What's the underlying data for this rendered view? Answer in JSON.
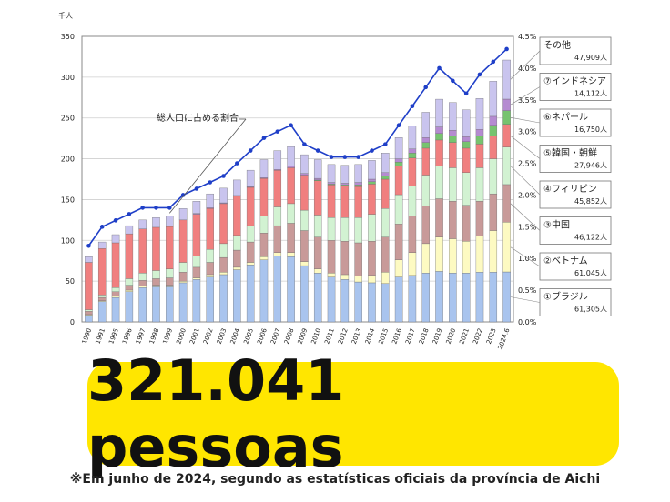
{
  "chart_data": {
    "type": "bar",
    "stacked": true,
    "y_unit_label": "千人",
    "ylim": [
      0,
      350
    ],
    "yticks": [
      0,
      50,
      100,
      150,
      200,
      250,
      300,
      350
    ],
    "y2lim": [
      0,
      4.5
    ],
    "y2ticks": [
      "0.0%",
      "0.5%",
      "1.0%",
      "1.5%",
      "2.0%",
      "2.5%",
      "3.0%",
      "3.5%",
      "4.0%",
      "4.5%"
    ],
    "categories": [
      "1990",
      "1991",
      "1995",
      "1996",
      "1997",
      "1998",
      "1999",
      "2000",
      "2001",
      "2002",
      "2003",
      "2004",
      "2005",
      "2006",
      "2007",
      "2008",
      "2009",
      "2010",
      "2011",
      "2012",
      "2013",
      "2014",
      "2015",
      "2016",
      "2017",
      "2018",
      "2019",
      "2020",
      "2021",
      "2022",
      "2023",
      "2024.6"
    ],
    "series": [
      {
        "name": "①ブラジル",
        "value_label": "61,305人",
        "color": "#a9c4ee",
        "values": [
          8,
          25,
          30,
          37,
          42,
          43,
          43,
          48,
          52,
          55,
          58,
          64,
          70,
          76,
          81,
          80,
          69,
          60,
          55,
          52,
          49,
          48,
          47,
          55,
          57,
          60,
          62,
          60,
          60,
          61,
          61,
          61.3
        ]
      },
      {
        "name": "②ベトナム",
        "value_label": "61,045人",
        "color": "#fdfac2",
        "values": [
          1,
          1,
          2,
          2,
          2,
          2,
          2,
          2,
          2,
          3,
          3,
          3,
          3,
          4,
          4,
          5,
          5,
          5,
          5,
          6,
          7,
          9,
          14,
          21,
          28,
          36,
          42,
          42,
          39,
          44,
          51,
          61.0
        ]
      },
      {
        "name": "③中国",
        "value_label": "46,122人",
        "color": "#c89a99",
        "values": [
          4,
          4,
          5,
          6,
          7,
          8,
          9,
          11,
          13,
          15,
          18,
          21,
          25,
          29,
          33,
          36,
          38,
          39,
          40,
          41,
          41,
          42,
          43,
          44,
          45,
          46,
          47,
          46,
          44,
          43,
          45,
          46.1
        ]
      },
      {
        "name": "④フィリピン",
        "value_label": "45,852人",
        "color": "#d2f2d2",
        "values": [
          2,
          3,
          5,
          8,
          9,
          10,
          11,
          12,
          14,
          16,
          17,
          18,
          20,
          21,
          23,
          24,
          25,
          27,
          28,
          29,
          31,
          33,
          35,
          36,
          37,
          38,
          40,
          41,
          40,
          41,
          43,
          45.9
        ]
      },
      {
        "name": "⑤韓国・朝鮮",
        "value_label": "27,946人",
        "color": "#f07f7f",
        "values": [
          58,
          57,
          55,
          55,
          54,
          53,
          52,
          52,
          51,
          50,
          49,
          48,
          47,
          46,
          45,
          44,
          43,
          42,
          40,
          39,
          38,
          37,
          36,
          35,
          34,
          33,
          32,
          31,
          30,
          29,
          28,
          27.9
        ]
      },
      {
        "name": "⑥ネパール",
        "value_label": "16,750人",
        "color": "#77c36f",
        "values": [
          0,
          0,
          0,
          0,
          0,
          0,
          0,
          0,
          0,
          0,
          0,
          0,
          0,
          0,
          0,
          0,
          0,
          1,
          1,
          1,
          2,
          3,
          4,
          5,
          6,
          7,
          8,
          8,
          8,
          10,
          13,
          16.8
        ]
      },
      {
        "name": "⑦インドネシア",
        "value_label": "14,112人",
        "color": "#b58bd1",
        "values": [
          0,
          0,
          0,
          0,
          0,
          0,
          0,
          0,
          1,
          1,
          1,
          1,
          1,
          1,
          1,
          2,
          2,
          2,
          2,
          2,
          3,
          3,
          4,
          4,
          5,
          6,
          8,
          7,
          6,
          8,
          11,
          14.1
        ]
      },
      {
        "name": "その他",
        "value_label": "47,909人",
        "color": "#c9c4ee",
        "values": [
          7,
          8,
          10,
          10,
          11,
          12,
          13,
          14,
          15,
          17,
          18,
          19,
          20,
          22,
          23,
          24,
          23,
          23,
          22,
          22,
          22,
          23,
          24,
          26,
          28,
          31,
          34,
          34,
          33,
          38,
          43,
          47.9
        ]
      }
    ],
    "line_series": {
      "name": "総人口に占める割合",
      "axis": "right",
      "color": "#1f3fc8",
      "values": [
        1.2,
        1.5,
        1.6,
        1.7,
        1.8,
        1.8,
        1.8,
        2.0,
        2.1,
        2.2,
        2.3,
        2.5,
        2.7,
        2.9,
        3.0,
        3.1,
        2.8,
        2.7,
        2.6,
        2.6,
        2.6,
        2.7,
        2.8,
        3.1,
        3.4,
        3.7,
        4.0,
        3.8,
        3.6,
        3.9,
        4.1,
        4.3
      ]
    }
  },
  "banner": {
    "text": "321.041 pessoas",
    "bg_color": "#ffe600"
  },
  "footnote": "※Em junho de 2024, segundo as estatísticas oficiais da província de Aichi"
}
